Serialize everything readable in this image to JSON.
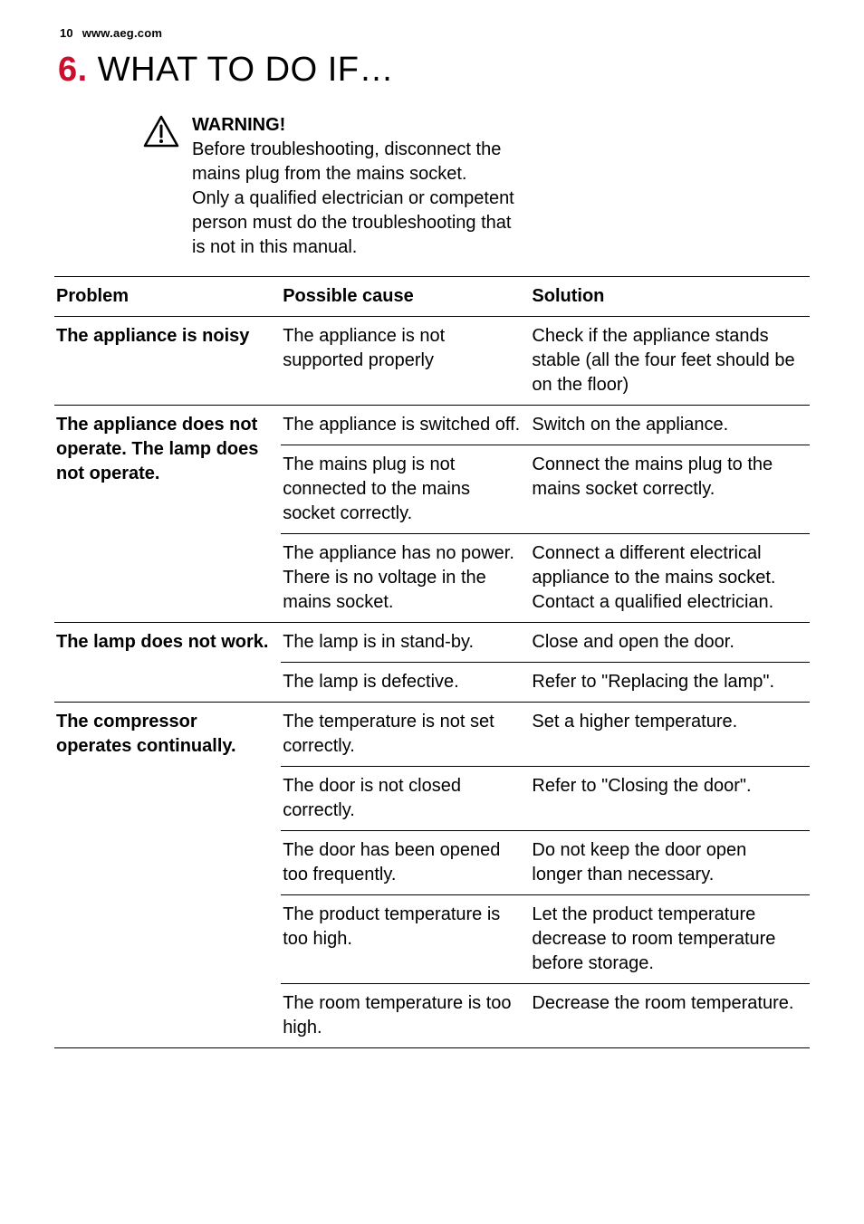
{
  "header": {
    "page_number": "10",
    "site": "www.aeg.com"
  },
  "section": {
    "number": "6.",
    "title": " WHAT TO DO IF…"
  },
  "warning": {
    "heading": "WARNING!",
    "body1": "Before troubleshooting, disconnect the mains plug from the mains socket.",
    "body2": "Only a qualified electrician or competent person must do the troubleshooting that is not in this manual."
  },
  "table": {
    "headers": {
      "problem": "Problem",
      "cause": "Possible cause",
      "solution": "Solution"
    },
    "rows": [
      {
        "problem": "The appliance is noisy",
        "cause": "The appliance is not supported properly",
        "solution": "Check if the appliance stands stable (all the four feet should be on the floor)"
      },
      {
        "problem": "The appliance does not operate. The lamp does not operate.",
        "cause": "The appliance is switched off.",
        "solution": "Switch on the appliance."
      },
      {
        "problem": "",
        "cause": "The mains plug is not connected to the mains socket correctly.",
        "solution": "Connect the mains plug to the mains socket correctly."
      },
      {
        "problem": "",
        "cause": "The appliance has no power. There is no voltage in the mains socket.",
        "solution": "Connect a different electrical appliance to the mains socket.\nContact a qualified electrician."
      },
      {
        "problem": "The lamp does not work.",
        "cause": "The lamp is in stand-by.",
        "solution": "Close and open the door."
      },
      {
        "problem": "",
        "cause": "The lamp is defective.",
        "solution": "Refer to \"Replacing the lamp\"."
      },
      {
        "problem": "The compressor operates continually.",
        "cause": "The temperature is not set correctly.",
        "solution": "Set a higher temperature."
      },
      {
        "problem": "",
        "cause": "The door is not closed correctly.",
        "solution": "Refer to \"Closing the door\"."
      },
      {
        "problem": "",
        "cause": "The door has been opened too frequently.",
        "solution": "Do not keep the door open longer than necessary."
      },
      {
        "problem": "",
        "cause": "The product temperature is too high.",
        "solution": "Let the product temperature decrease to room temperature before storage."
      },
      {
        "problem": "",
        "cause": "The room temperature is too high.",
        "solution": "Decrease the room temperature."
      }
    ]
  },
  "colors": {
    "accent": "#c8102e",
    "text": "#000000",
    "background": "#ffffff"
  }
}
